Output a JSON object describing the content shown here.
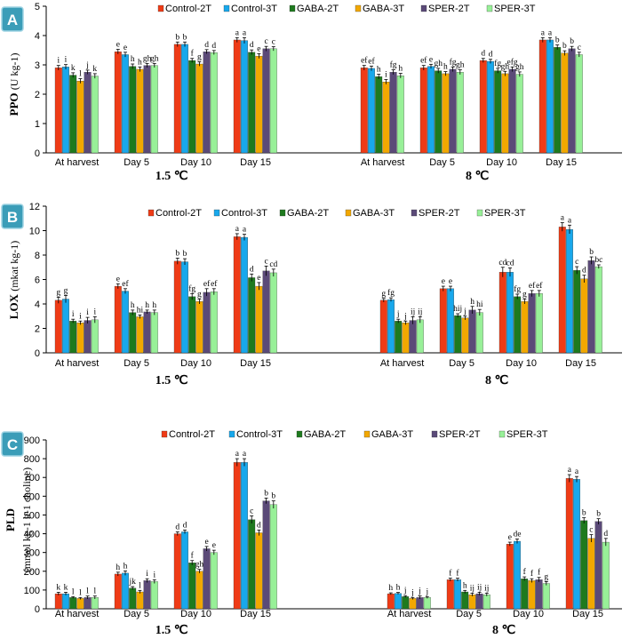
{
  "colors": {
    "Control-2T": "#ef3b16",
    "Control-3T": "#18a8ec",
    "GABA-2T": "#1e7a1e",
    "GABA-3T": "#f2a800",
    "SPER-2T": "#5b4a78",
    "SPER-3T": "#98f098",
    "panel_badge": "#3b9db8"
  },
  "chart_data": [
    {
      "type": "bar",
      "panel": "A",
      "ylabel": "PPO",
      "ylabel_unit": "(U kg-1)",
      "ylim": [
        0,
        5
      ],
      "yticks": [
        0,
        1,
        2,
        3,
        4,
        5
      ],
      "categories": [
        "At harvest",
        "Day 5",
        "Day 10",
        "Day 15"
      ],
      "groups": [
        "1.5 ℃",
        "8 ℃"
      ],
      "legend": [
        "Control-2T",
        "Control-3T",
        "GABA-2T",
        "GABA-3T",
        "SPER-2T",
        "SPER-3T"
      ],
      "series": [
        {
          "name": "Control-2T",
          "values": [
            [
              2.9,
              3.45,
              3.7,
              3.85
            ],
            [
              2.9,
              2.9,
              3.15,
              3.85
            ]
          ],
          "errors": [
            [
              0.08,
              0.08,
              0.08,
              0.08
            ],
            [
              0.08,
              0.08,
              0.07,
              0.08
            ]
          ],
          "letters": [
            [
              "i",
              "e",
              "b",
              "a"
            ],
            [
              "ef",
              "ef",
              "d",
              "a"
            ]
          ]
        },
        {
          "name": "Control-3T",
          "values": [
            [
              2.93,
              3.35,
              3.7,
              3.83
            ],
            [
              2.88,
              2.95,
              3.12,
              3.85
            ]
          ],
          "errors": [
            [
              0.08,
              0.08,
              0.08,
              0.1
            ],
            [
              0.08,
              0.07,
              0.07,
              0.08
            ]
          ],
          "letters": [
            [
              "i",
              "e",
              "b",
              "a"
            ],
            [
              "ef",
              "e",
              "d",
              "a"
            ]
          ]
        },
        {
          "name": "GABA-2T",
          "values": [
            [
              2.65,
              2.95,
              3.15,
              3.43
            ],
            [
              2.6,
              2.8,
              2.8,
              3.6
            ]
          ],
          "errors": [
            [
              0.08,
              0.08,
              0.07,
              0.08
            ],
            [
              0.08,
              0.08,
              0.08,
              0.08
            ]
          ],
          "letters": [
            [
              "k",
              "h",
              "f",
              "d"
            ],
            [
              "h",
              "gh",
              "fg",
              "b"
            ]
          ]
        },
        {
          "name": "GABA-3T",
          "values": [
            [
              2.45,
              2.85,
              3.03,
              3.3
            ],
            [
              2.42,
              2.7,
              2.7,
              3.4
            ]
          ],
          "errors": [
            [
              0.08,
              0.08,
              0.07,
              0.08
            ],
            [
              0.08,
              0.07,
              0.08,
              0.08
            ]
          ],
          "letters": [
            [
              "l",
              "h",
              "g",
              "e"
            ],
            [
              "i",
              "h",
              "gh",
              "b"
            ]
          ]
        },
        {
          "name": "SPER-2T",
          "values": [
            [
              2.75,
              2.98,
              3.45,
              3.55
            ],
            [
              2.75,
              2.85,
              2.85,
              3.55
            ]
          ],
          "errors": [
            [
              0.07,
              0.07,
              0.07,
              0.08
            ],
            [
              0.08,
              0.08,
              0.08,
              0.08
            ]
          ],
          "letters": [
            [
              "j",
              "gh",
              "d",
              "c"
            ],
            [
              "fg",
              "fg",
              "efg",
              "b"
            ]
          ]
        },
        {
          "name": "SPER-3T",
          "values": [
            [
              2.62,
              2.98,
              3.42,
              3.55
            ],
            [
              2.63,
              2.75,
              2.68,
              3.35
            ]
          ],
          "errors": [
            [
              0.08,
              0.07,
              0.07,
              0.07
            ],
            [
              0.08,
              0.08,
              0.08,
              0.08
            ]
          ],
          "letters": [
            [
              "k",
              "gh",
              "d",
              "c"
            ],
            [
              "h",
              "gh",
              "gh",
              "c"
            ]
          ]
        }
      ]
    },
    {
      "type": "bar",
      "panel": "B",
      "ylabel": "LOX",
      "ylabel_unit": "(mkat kg-1)",
      "ylim": [
        0,
        12
      ],
      "yticks": [
        0,
        2,
        4,
        6,
        8,
        10,
        12
      ],
      "categories": [
        "At harvest",
        "Day 5",
        "Day 10",
        "Day 15"
      ],
      "groups": [
        "1.5 ℃",
        "8 ℃"
      ],
      "legend": [
        "Control-2T",
        "Control-3T",
        "GABA-2T",
        "GABA-3T",
        "SPER-2T",
        "SPER-3T"
      ],
      "series": [
        {
          "name": "Control-2T",
          "values": [
            [
              4.3,
              5.45,
              7.5,
              9.5
            ],
            [
              4.3,
              5.25,
              6.6,
              10.3
            ]
          ],
          "errors": [
            [
              0.25,
              0.2,
              0.25,
              0.25
            ],
            [
              0.15,
              0.2,
              0.4,
              0.35
            ]
          ],
          "letters": [
            [
              "g",
              "e",
              "b",
              "a"
            ],
            [
              "g",
              "e",
              "cd",
              "a"
            ]
          ]
        },
        {
          "name": "Control-3T",
          "values": [
            [
              4.4,
              5.05,
              7.45,
              9.45
            ],
            [
              4.35,
              5.25,
              6.6,
              10.1
            ]
          ],
          "errors": [
            [
              0.3,
              0.2,
              0.25,
              0.25
            ],
            [
              0.15,
              0.2,
              0.35,
              0.35
            ]
          ],
          "letters": [
            [
              "g",
              "ef",
              "b",
              "a"
            ],
            [
              "fg",
              "e",
              "cd",
              "a"
            ]
          ]
        },
        {
          "name": "GABA-2T",
          "values": [
            [
              2.6,
              3.3,
              4.6,
              6.15
            ],
            [
              2.6,
              3.05,
              4.6,
              6.75
            ]
          ],
          "errors": [
            [
              0.15,
              0.2,
              0.25,
              0.3
            ],
            [
              0.15,
              0.15,
              0.2,
              0.3
            ]
          ],
          "letters": [
            [
              "i",
              "h",
              "fg",
              "d"
            ],
            [
              "j",
              "hij",
              "fg",
              "c"
            ]
          ]
        },
        {
          "name": "GABA-3T",
          "values": [
            [
              2.45,
              2.95,
              4.2,
              5.45
            ],
            [
              2.45,
              2.85,
              4.2,
              6.05
            ]
          ],
          "errors": [
            [
              0.15,
              0.15,
              0.2,
              0.3
            ],
            [
              0.15,
              0.15,
              0.2,
              0.3
            ]
          ],
          "letters": [
            [
              "i",
              "hi",
              "g",
              "e"
            ],
            [
              "j",
              "j",
              "g",
              "d"
            ]
          ]
        },
        {
          "name": "SPER-2T",
          "values": [
            [
              2.65,
              3.35,
              4.95,
              6.7
            ],
            [
              2.65,
              3.5,
              4.85,
              7.55
            ]
          ],
          "errors": [
            [
              0.25,
              0.15,
              0.3,
              0.4
            ],
            [
              0.3,
              0.3,
              0.25,
              0.3
            ]
          ],
          "letters": [
            [
              "i",
              "h",
              "ef",
              "c"
            ],
            [
              "ij",
              "h",
              "ef",
              "b"
            ]
          ]
        },
        {
          "name": "SPER-3T",
          "values": [
            [
              2.7,
              3.3,
              5.0,
              6.55
            ],
            [
              2.7,
              3.3,
              4.85,
              7.05
            ]
          ],
          "errors": [
            [
              0.25,
              0.2,
              0.25,
              0.3
            ],
            [
              0.25,
              0.25,
              0.25,
              0.15
            ]
          ],
          "letters": [
            [
              "i",
              "h",
              "ef",
              "cd"
            ],
            [
              "ij",
              "hi",
              "ef",
              "bc"
            ]
          ]
        }
      ]
    },
    {
      "type": "bar",
      "panel": "C",
      "ylabel": "PLD",
      "ylabel_unit": "(mmol kg-1 h-1 choline)",
      "ylim": [
        0,
        900
      ],
      "yticks": [
        0,
        100,
        200,
        300,
        400,
        500,
        600,
        700,
        800,
        900
      ],
      "categories": [
        "At harvest",
        "Day 5",
        "Day 10",
        "Day 15"
      ],
      "groups": [
        "1.5 ℃",
        "8 ℃"
      ],
      "legend": [
        "Control-2T",
        "Control-3T",
        "GABA-2T",
        "GABA-3T",
        "SPER-2T",
        "SPER-3T"
      ],
      "series": [
        {
          "name": "Control-2T",
          "values": [
            [
              80,
              185,
              400,
              780
            ],
            [
              80,
              155,
              345,
              695
            ]
          ],
          "errors": [
            [
              8,
              10,
              10,
              20
            ],
            [
              5,
              8,
              10,
              20
            ]
          ],
          "letters": [
            [
              "k",
              "h",
              "d",
              "a"
            ],
            [
              "h",
              "f",
              "e",
              "a"
            ]
          ]
        },
        {
          "name": "Control-3T",
          "values": [
            [
              80,
              190,
              410,
              780
            ],
            [
              82,
              155,
              360,
              690
            ]
          ],
          "errors": [
            [
              8,
              12,
              10,
              20
            ],
            [
              5,
              8,
              12,
              15
            ]
          ],
          "letters": [
            [
              "k",
              "h",
              "d",
              "a"
            ],
            [
              "h",
              "f",
              "de",
              "a"
            ]
          ]
        },
        {
          "name": "GABA-2T",
          "values": [
            [
              60,
              110,
              245,
              475
            ],
            [
              65,
              90,
              160,
              470
            ]
          ],
          "errors": [
            [
              5,
              8,
              12,
              20
            ],
            [
              5,
              8,
              10,
              15
            ]
          ],
          "letters": [
            [
              "l",
              "jk",
              "f",
              "c"
            ],
            [
              "j",
              "h",
              "f",
              "b"
            ]
          ]
        },
        {
          "name": "GABA-3T",
          "values": [
            [
              55,
              90,
              200,
              405
            ],
            [
              55,
              75,
              150,
              375
            ]
          ],
          "errors": [
            [
              5,
              8,
              10,
              15
            ],
            [
              5,
              8,
              10,
              20
            ]
          ],
          "letters": [
            [
              "l",
              "l",
              "gh",
              "d"
            ],
            [
              "j",
              "ij",
              "f",
              "c"
            ]
          ]
        },
        {
          "name": "SPER-2T",
          "values": [
            [
              60,
              150,
              320,
              575
            ],
            [
              60,
              80,
              155,
              465
            ]
          ],
          "errors": [
            [
              8,
              10,
              12,
              15
            ],
            [
              8,
              8,
              12,
              15
            ]
          ],
          "letters": [
            [
              "l",
              "i",
              "e",
              "b"
            ],
            [
              "j",
              "ij",
              "f",
              "b"
            ]
          ]
        },
        {
          "name": "SPER-3T",
          "values": [
            [
              60,
              145,
              300,
              555
            ],
            [
              60,
              75,
              135,
              355
            ]
          ],
          "errors": [
            [
              8,
              10,
              12,
              20
            ],
            [
              5,
              8,
              10,
              20
            ]
          ],
          "letters": [
            [
              "l",
              "i",
              "e",
              "b"
            ],
            [
              "j",
              "ij",
              "g",
              "d"
            ]
          ]
        }
      ]
    }
  ]
}
